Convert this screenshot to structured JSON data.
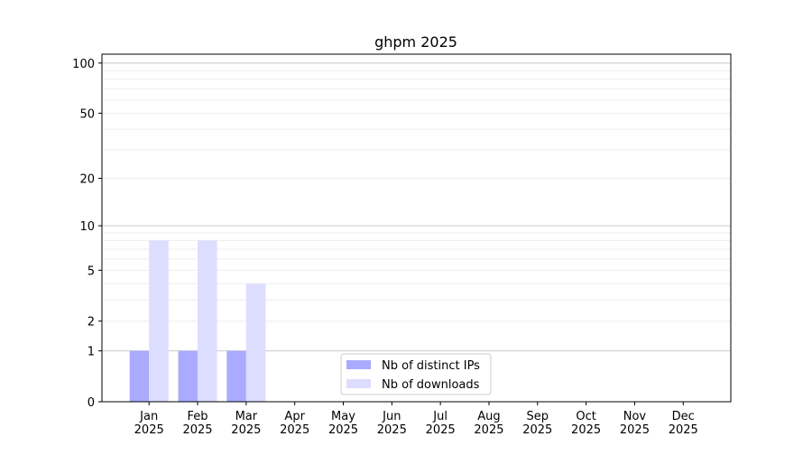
{
  "chart_data": {
    "type": "bar",
    "title": "ghpm 2025",
    "xlabel": "",
    "ylabel": "",
    "yscale": "log(1+y)",
    "ylim": [
      0,
      113
    ],
    "yticks": [
      0,
      1,
      2,
      5,
      10,
      20,
      50,
      100
    ],
    "grid": true,
    "legend_position": "lower-center",
    "categories": [
      "Jan\n2025",
      "Feb\n2025",
      "Mar\n2025",
      "Apr\n2025",
      "May\n2025",
      "Jun\n2025",
      "Jul\n2025",
      "Aug\n2025",
      "Sep\n2025",
      "Oct\n2025",
      "Nov\n2025",
      "Dec\n2025"
    ],
    "series": [
      {
        "name": "Nb of distinct IPs",
        "color": "#aaaaff",
        "values": [
          1,
          1,
          1,
          0,
          0,
          0,
          0,
          0,
          0,
          0,
          0,
          0
        ]
      },
      {
        "name": "Nb of downloads",
        "color": "#ddddff",
        "values": [
          8,
          8,
          4,
          0,
          0,
          0,
          0,
          0,
          0,
          0,
          0,
          0
        ]
      }
    ]
  }
}
